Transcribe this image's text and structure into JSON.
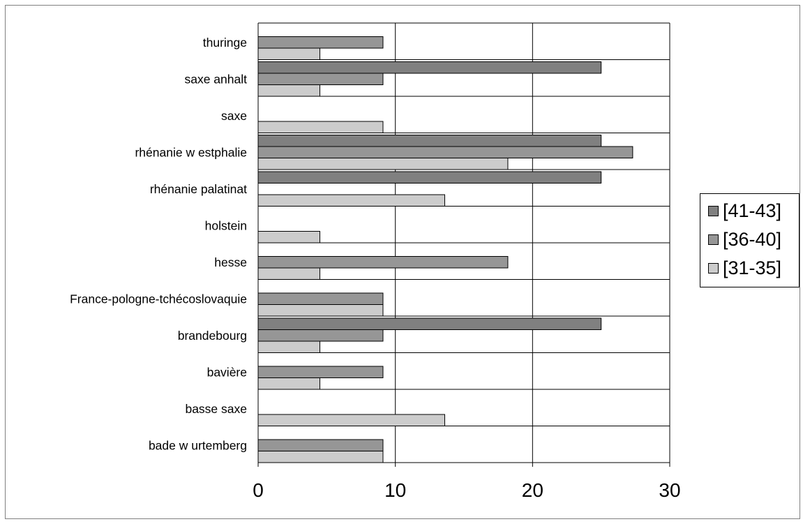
{
  "chart_data": {
    "type": "bar",
    "orientation": "horizontal",
    "categories": [
      "thuringe",
      "saxe anhalt",
      "saxe",
      "rhénanie w estphalie",
      "rhénanie palatinat",
      "holstein",
      "hesse",
      "France-pologne-tchécoslovaquie",
      "brandebourg",
      "bavière",
      "basse saxe",
      "bade w urtemberg"
    ],
    "series": [
      {
        "name": "[41-43]",
        "color": "#808080",
        "values": [
          null,
          25,
          null,
          25,
          25,
          null,
          null,
          null,
          25,
          null,
          null,
          null
        ]
      },
      {
        "name": "[36-40]",
        "color": "#969696",
        "values": [
          9.1,
          9.1,
          null,
          27.3,
          null,
          null,
          18.2,
          9.1,
          9.1,
          9.1,
          null,
          9.1
        ]
      },
      {
        "name": "[31-35]",
        "color": "#cccccc",
        "values": [
          4.5,
          4.5,
          9.1,
          18.2,
          13.6,
          4.5,
          4.5,
          9.1,
          4.5,
          4.5,
          13.6,
          9.1
        ]
      }
    ],
    "x_ticks": [
      "0",
      "10",
      "20",
      "30"
    ],
    "xlim": [
      0,
      30
    ],
    "grid": true,
    "legend": "right"
  }
}
